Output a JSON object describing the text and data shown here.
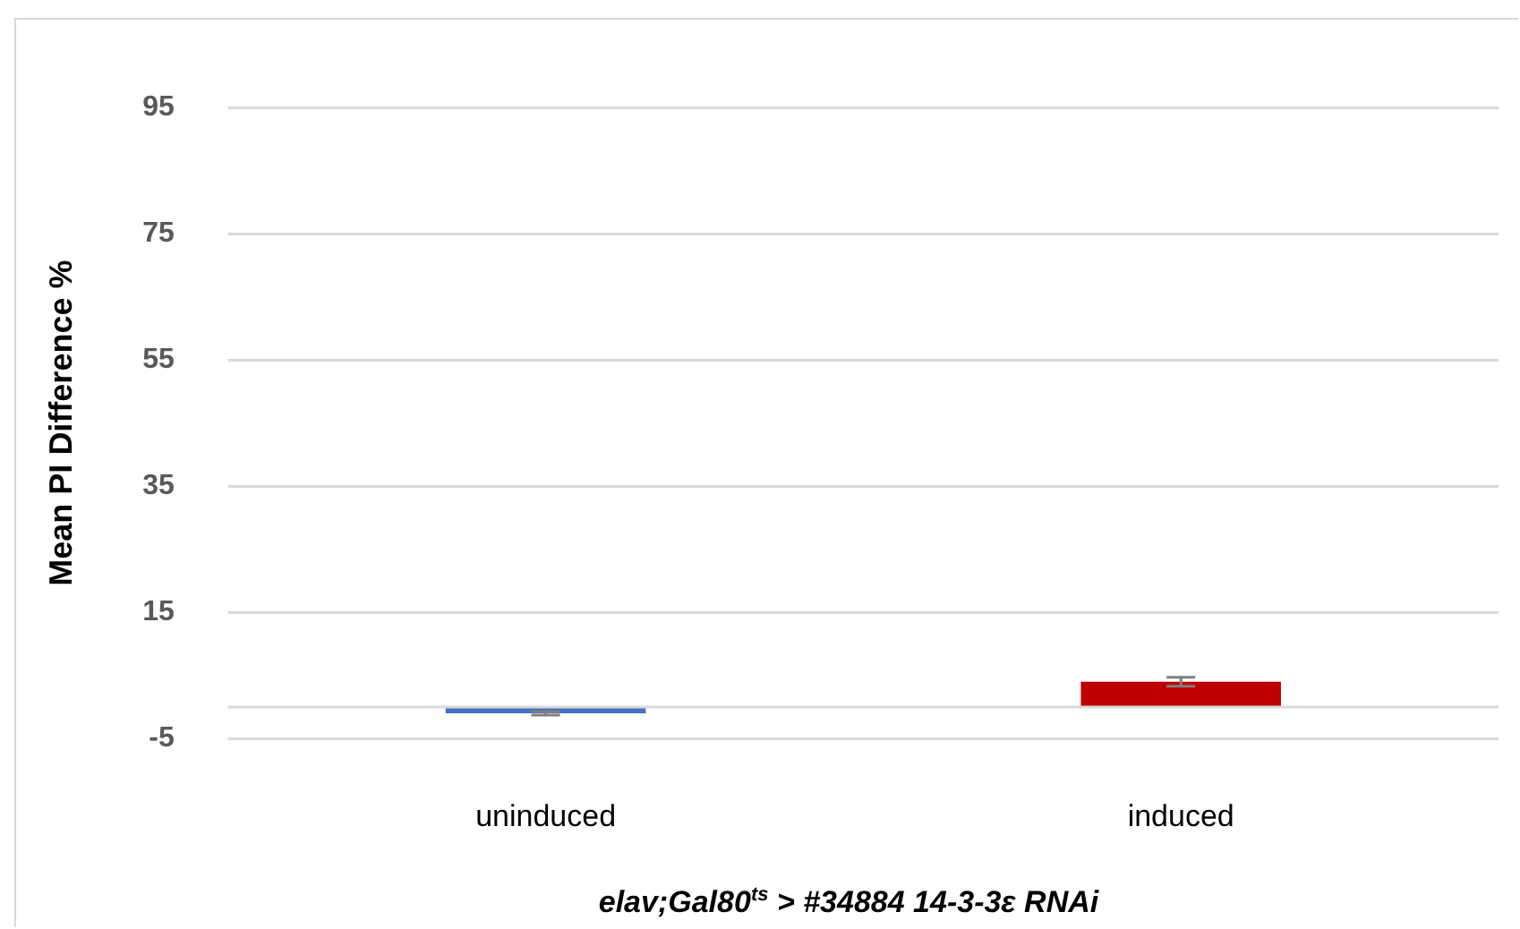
{
  "chart_data": {
    "type": "bar",
    "ylabel": "Mean PI Difference %",
    "xlabel": "elav;Gal80$^{ts}$ > #34884 14-3-3ε RNAi",
    "categories": [
      "uninduced",
      "induced"
    ],
    "values": [
      -1,
      4
    ],
    "colors": [
      "#4472c4",
      "#c00000"
    ],
    "errors": [
      0.3,
      0.7
    ],
    "ylim": [
      -5,
      95
    ],
    "yticks": [
      -5,
      15,
      35,
      55,
      75,
      95
    ],
    "grid": "y",
    "ref_lines": [
      {
        "axis": "y",
        "value": 0,
        "color": "#d9d9d9"
      }
    ]
  }
}
